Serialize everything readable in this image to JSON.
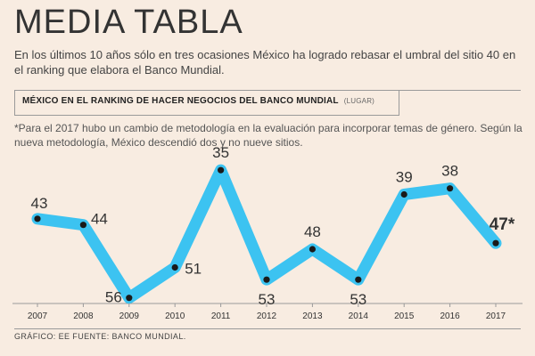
{
  "header": {
    "title": "MEDIA TABLA",
    "subtitle": "En los últimos 10 años sólo en tres ocasiones México ha logrado rebasar el umbral del sitio 40 en el ranking que elabora el Banco Mundial."
  },
  "note": "*Para el 2017 hubo un cambio de metodología en la evaluación para incorporar temas de género. Según la nueva metodología, México descendió dos y no nueve sitios.",
  "footer": "GRÁFICO: EE  FUENTE: BANCO MUNDIAL.",
  "colors": {
    "background": "#f8ece1",
    "line": "#3cc3f1",
    "marker": "#1a1a1a",
    "text": "#333333"
  },
  "chart_data": {
    "type": "line",
    "title": "MÉXICO EN EL RANKING DE HACER NEGOCIOS DEL BANCO MUNDIAL",
    "unit_label": "(LUGAR)",
    "xlabel": "",
    "ylabel": "",
    "y_inverted": true,
    "ylim": [
      60,
      30
    ],
    "x": [
      "2007",
      "2008",
      "2009",
      "2010",
      "2011",
      "2012",
      "2013",
      "2014",
      "2015",
      "2016",
      "2017"
    ],
    "series": [
      {
        "name": "Lugar",
        "values": [
          43,
          44,
          56,
          51,
          35,
          53,
          48,
          53,
          39,
          38,
          47
        ],
        "labels": [
          "43",
          "44",
          "56",
          "51",
          "35",
          "53",
          "48",
          "53",
          "39",
          "38",
          "47*"
        ]
      }
    ],
    "highlight_last_label": true
  }
}
